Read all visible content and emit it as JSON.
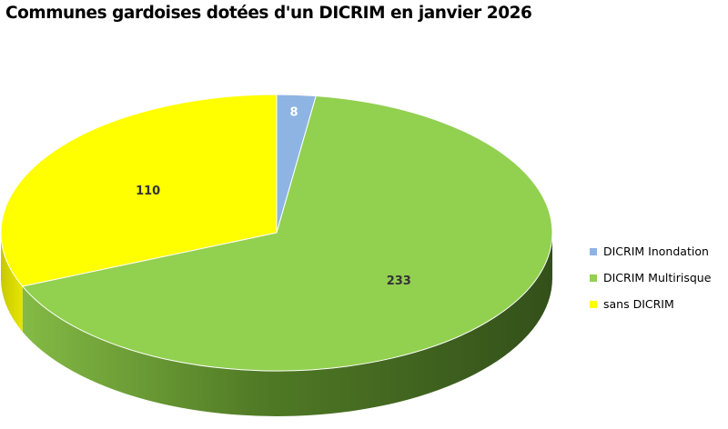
{
  "chart_data": {
    "type": "pie",
    "title": "Communes gardoises dotées d'un DICRIM en janvier 2026",
    "slices": [
      {
        "label": "DICRIM Inondation",
        "value": 8,
        "color": "#8EB4E3"
      },
      {
        "label": "DICRIM Multirisque",
        "value": 233,
        "color": "#92D050"
      },
      {
        "label": "sans DICRIM",
        "value": 110,
        "color": "#FFFF00"
      }
    ],
    "data_labels": true,
    "three_d": true,
    "legend_position": "right"
  }
}
